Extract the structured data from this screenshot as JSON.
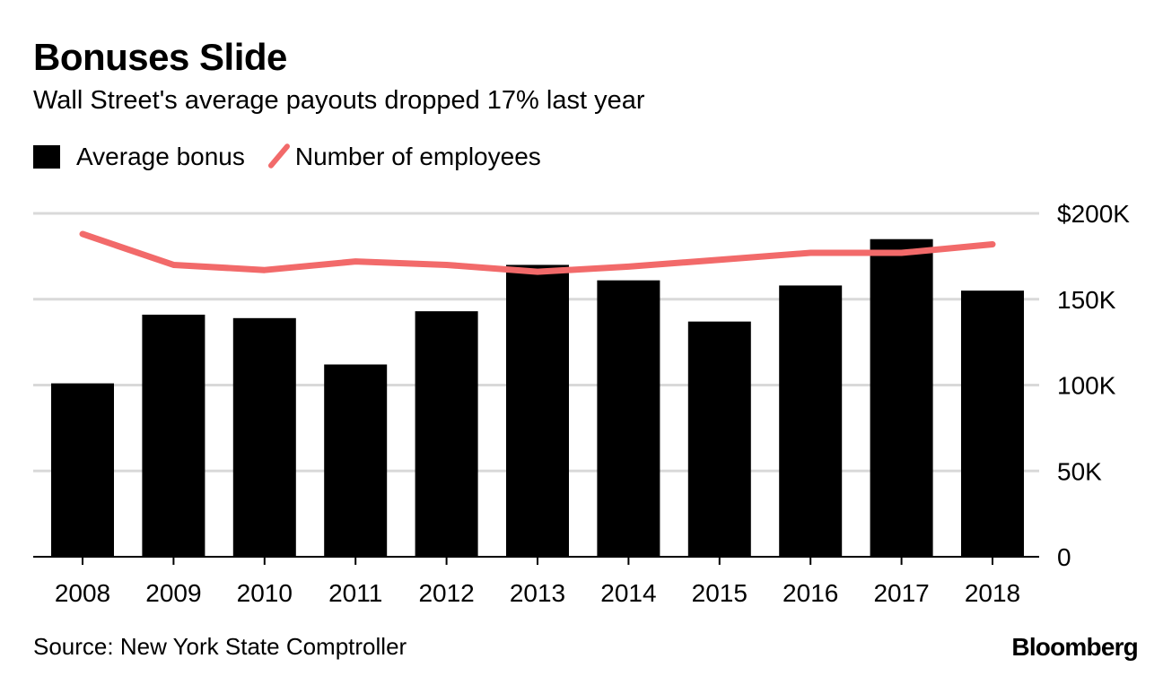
{
  "chart_data": {
    "type": "bar",
    "title": "Bonuses Slide",
    "subtitle": "Wall Street's average payouts dropped 17% last year",
    "categories": [
      "2008",
      "2009",
      "2010",
      "2011",
      "2012",
      "2013",
      "2014",
      "2015",
      "2016",
      "2017",
      "2018"
    ],
    "series": [
      {
        "name": "Average bonus",
        "kind": "bar",
        "values": [
          101000,
          141000,
          139000,
          112000,
          143000,
          170000,
          161000,
          137000,
          158000,
          185000,
          155000
        ]
      },
      {
        "name": "Number of employees",
        "kind": "line",
        "color": "#f26a6a",
        "values": [
          188000,
          170000,
          167000,
          172000,
          170000,
          166000,
          169000,
          173000,
          177000,
          177000,
          182000
        ]
      }
    ],
    "ylim": [
      0,
      200000
    ],
    "yticks": [
      0,
      50000,
      100000,
      150000,
      200000
    ],
    "ytick_labels": [
      "0",
      "50K",
      "100K",
      "150K",
      "$200K"
    ],
    "grid": true,
    "legend_position": "top-left",
    "bar_color": "#000000",
    "grid_color": "#d9d9d9"
  },
  "source": "Source: New York State Comptroller",
  "brand": "Bloomberg"
}
